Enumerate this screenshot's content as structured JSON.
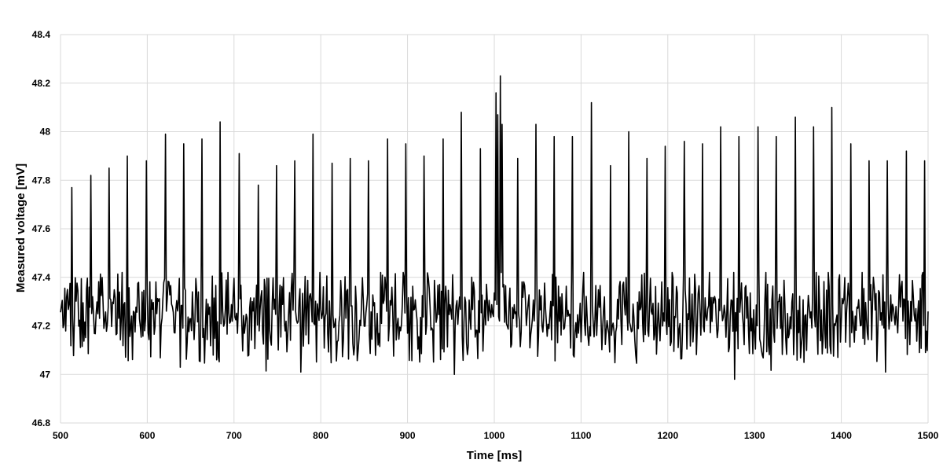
{
  "chart_data": {
    "type": "line",
    "title": "",
    "xlabel": "Time [ms]",
    "ylabel": "Measured voltage [mV]",
    "xlim": [
      500,
      1500
    ],
    "ylim": [
      46.8,
      48.4
    ],
    "x_ticks": [
      "500",
      "600",
      "700",
      "800",
      "900",
      "1000",
      "1100",
      "1200",
      "1300",
      "1400",
      "1500"
    ],
    "y_ticks": [
      "46.8",
      "47",
      "47.2",
      "47.4",
      "47.6",
      "47.8",
      "48",
      "48.2",
      "48.4"
    ],
    "grid": true,
    "legend": "none",
    "line_color": "#000000",
    "baseline_mV": 47.24,
    "noise_range_mV": [
      47.0,
      47.42
    ],
    "spikes": [
      {
        "x": 513,
        "y": 47.77
      },
      {
        "x": 535,
        "y": 47.82
      },
      {
        "x": 556,
        "y": 47.85
      },
      {
        "x": 577,
        "y": 47.9
      },
      {
        "x": 599,
        "y": 47.88
      },
      {
        "x": 621,
        "y": 47.99
      },
      {
        "x": 642,
        "y": 47.95
      },
      {
        "x": 663,
        "y": 47.97
      },
      {
        "x": 684,
        "y": 48.04
      },
      {
        "x": 706,
        "y": 47.91
      },
      {
        "x": 728,
        "y": 47.78
      },
      {
        "x": 749,
        "y": 47.86
      },
      {
        "x": 770,
        "y": 47.88
      },
      {
        "x": 791,
        "y": 47.99
      },
      {
        "x": 813,
        "y": 47.87
      },
      {
        "x": 834,
        "y": 47.89
      },
      {
        "x": 855,
        "y": 47.88
      },
      {
        "x": 877,
        "y": 47.97
      },
      {
        "x": 898,
        "y": 47.95
      },
      {
        "x": 919,
        "y": 47.9
      },
      {
        "x": 941,
        "y": 47.97
      },
      {
        "x": 962,
        "y": 48.08
      },
      {
        "x": 984,
        "y": 47.93
      },
      {
        "x": 1002,
        "y": 48.16
      },
      {
        "x": 1004,
        "y": 48.07
      },
      {
        "x": 1007,
        "y": 48.23
      },
      {
        "x": 1009,
        "y": 48.03
      },
      {
        "x": 1027,
        "y": 47.89
      },
      {
        "x": 1048,
        "y": 48.03
      },
      {
        "x": 1069,
        "y": 47.98
      },
      {
        "x": 1090,
        "y": 47.98
      },
      {
        "x": 1112,
        "y": 48.12
      },
      {
        "x": 1134,
        "y": 47.86
      },
      {
        "x": 1155,
        "y": 48.0
      },
      {
        "x": 1176,
        "y": 47.89
      },
      {
        "x": 1197,
        "y": 47.94
      },
      {
        "x": 1219,
        "y": 47.96
      },
      {
        "x": 1240,
        "y": 47.95
      },
      {
        "x": 1261,
        "y": 48.02
      },
      {
        "x": 1282,
        "y": 47.98
      },
      {
        "x": 1304,
        "y": 48.02
      },
      {
        "x": 1325,
        "y": 47.98
      },
      {
        "x": 1347,
        "y": 48.06
      },
      {
        "x": 1368,
        "y": 48.02
      },
      {
        "x": 1389,
        "y": 48.1
      },
      {
        "x": 1411,
        "y": 47.95
      },
      {
        "x": 1432,
        "y": 47.88
      },
      {
        "x": 1453,
        "y": 47.88
      },
      {
        "x": 1475,
        "y": 47.92
      },
      {
        "x": 1496,
        "y": 47.88
      }
    ],
    "notable_minima": [
      {
        "x": 556,
        "y": 47.03
      },
      {
        "x": 777,
        "y": 47.01
      },
      {
        "x": 954,
        "y": 47.0
      },
      {
        "x": 1277,
        "y": 46.98
      },
      {
        "x": 1451,
        "y": 47.01
      }
    ]
  }
}
